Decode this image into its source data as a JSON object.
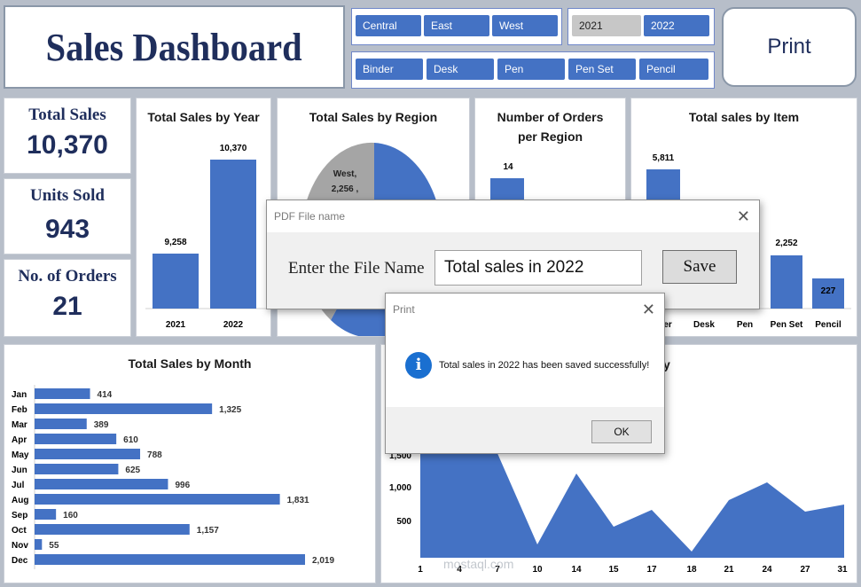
{
  "title": "Sales Dashboard",
  "print_label": "Print",
  "regions": [
    "Central",
    "East",
    "West"
  ],
  "years": [
    {
      "label": "2021",
      "selected": false
    },
    {
      "label": "2022",
      "selected": true
    }
  ],
  "items": [
    "Binder",
    "Desk",
    "Pen",
    "Pen Set",
    "Pencil"
  ],
  "kpis": {
    "total_sales_label": "Total Sales",
    "total_sales_value": "10,370",
    "units_label": "Units Sold",
    "units_value": "943",
    "orders_label": "No. of Orders",
    "orders_value": "21"
  },
  "charts": {
    "year": {
      "title": "Total Sales by Year",
      "categories": [
        "2021",
        "2022"
      ],
      "values": [
        9258,
        10370
      ],
      "labels": [
        "9,258",
        "10,370"
      ]
    },
    "region": {
      "title": "Total Sales by Region",
      "west_label": "West,",
      "west_value": "2,256 ,"
    },
    "orders": {
      "title_1": "Number of Orders",
      "title_2": "per Region",
      "value_label": "14"
    },
    "item": {
      "title": "Total sales by Item",
      "visible_categories": [
        "Desk",
        "Pen",
        "Pen Set",
        "Pencil"
      ],
      "partial_category": "der",
      "top_label": "5,811",
      "penset_label": "2,252",
      "pencil_label": "227"
    },
    "month": {
      "title": "Total Sales by Month",
      "categories": [
        "Jan",
        "Feb",
        "Mar",
        "Apr",
        "May",
        "Jun",
        "Jul",
        "Aug",
        "Sep",
        "Oct",
        "Nov",
        "Dec"
      ],
      "values": [
        414,
        1325,
        389,
        610,
        788,
        625,
        996,
        1831,
        160,
        1157,
        55,
        2019
      ],
      "labels": [
        "414",
        "1,325",
        "389",
        "610",
        "788",
        "625",
        "996",
        "1,831",
        "160",
        "1,157",
        "55",
        "2,019"
      ]
    },
    "daily": {
      "title_fragment": "y",
      "y_ticks": [
        "1,500",
        "1,000",
        "500"
      ],
      "x_ticks": [
        "1",
        "4",
        "7",
        "10",
        "14",
        "15",
        "17",
        "18",
        "21",
        "24",
        "27",
        "31"
      ]
    }
  },
  "chart_data": [
    {
      "type": "bar",
      "title": "Total Sales by Year",
      "categories": [
        "2021",
        "2022"
      ],
      "values": [
        9258,
        10370
      ]
    },
    {
      "type": "bar",
      "title": "Total sales by Item",
      "categories": [
        "Binder",
        "Desk",
        "Pen",
        "Pen Set",
        "Pencil"
      ],
      "values": [
        5811,
        null,
        null,
        2252,
        227
      ]
    },
    {
      "type": "bar",
      "title": "Total Sales by Month",
      "categories": [
        "Jan",
        "Feb",
        "Mar",
        "Apr",
        "May",
        "Jun",
        "Jul",
        "Aug",
        "Sep",
        "Oct",
        "Nov",
        "Dec"
      ],
      "values": [
        414,
        1325,
        389,
        610,
        788,
        625,
        996,
        1831,
        160,
        1157,
        55,
        2019
      ]
    },
    {
      "type": "area",
      "x": [
        1,
        4,
        7,
        10,
        14,
        15,
        17,
        18,
        21,
        24,
        27,
        31
      ],
      "values": [
        1450,
        1600,
        1450,
        100,
        1200,
        450,
        700,
        20,
        850,
        1080,
        650,
        750
      ],
      "y_ticks": [
        500,
        1000,
        1500
      ]
    }
  ],
  "pdf_dialog": {
    "title": "PDF File name",
    "prompt": "Enter the File Name",
    "input_value": "Total sales in 2022",
    "save_label": "Save",
    "close_glyph": "✕"
  },
  "print_dialog": {
    "title": "Print",
    "message": "Total sales in 2022 has been saved successfully!",
    "ok_label": "OK",
    "info_glyph": "i",
    "close_glyph": "✕"
  },
  "watermark": {
    "text": "mostaql.com"
  },
  "colors": {
    "accent": "#4472c4",
    "navy": "#1f2e5c",
    "grey_slice": "#a5a5a5"
  }
}
